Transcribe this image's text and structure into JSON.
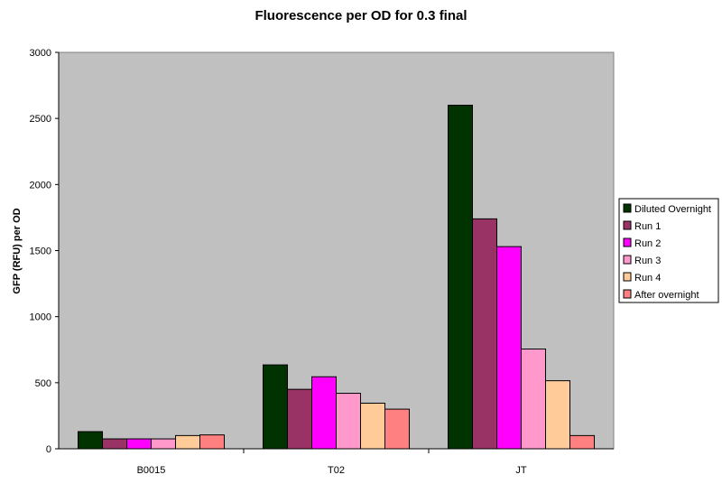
{
  "chart_data": {
    "type": "bar",
    "title": "Fluorescence per OD for 0.3 final",
    "xlabel": "",
    "ylabel": "GFP (RFU) per OD",
    "ylim": [
      0,
      3000
    ],
    "yticks": [
      0,
      500,
      1000,
      1500,
      2000,
      2500,
      3000
    ],
    "categories": [
      "B0015",
      "T02",
      "JT"
    ],
    "series": [
      {
        "name": "Diluted Overnight",
        "color": "#003300",
        "values": [
          130,
          635,
          2600
        ]
      },
      {
        "name": "Run 1",
        "color": "#993366",
        "values": [
          75,
          450,
          1740
        ]
      },
      {
        "name": "Run 2",
        "color": "#ff00ff",
        "values": [
          75,
          545,
          1530
        ]
      },
      {
        "name": "Run 3",
        "color": "#ff99cc",
        "values": [
          75,
          420,
          755
        ]
      },
      {
        "name": "Run 4",
        "color": "#ffcc99",
        "values": [
          100,
          345,
          515
        ]
      },
      {
        "name": "After overnight",
        "color": "#ff8080",
        "values": [
          105,
          300,
          100
        ]
      }
    ],
    "plot_background": "#c0c0c0",
    "grid": false,
    "legend_position": "right"
  }
}
